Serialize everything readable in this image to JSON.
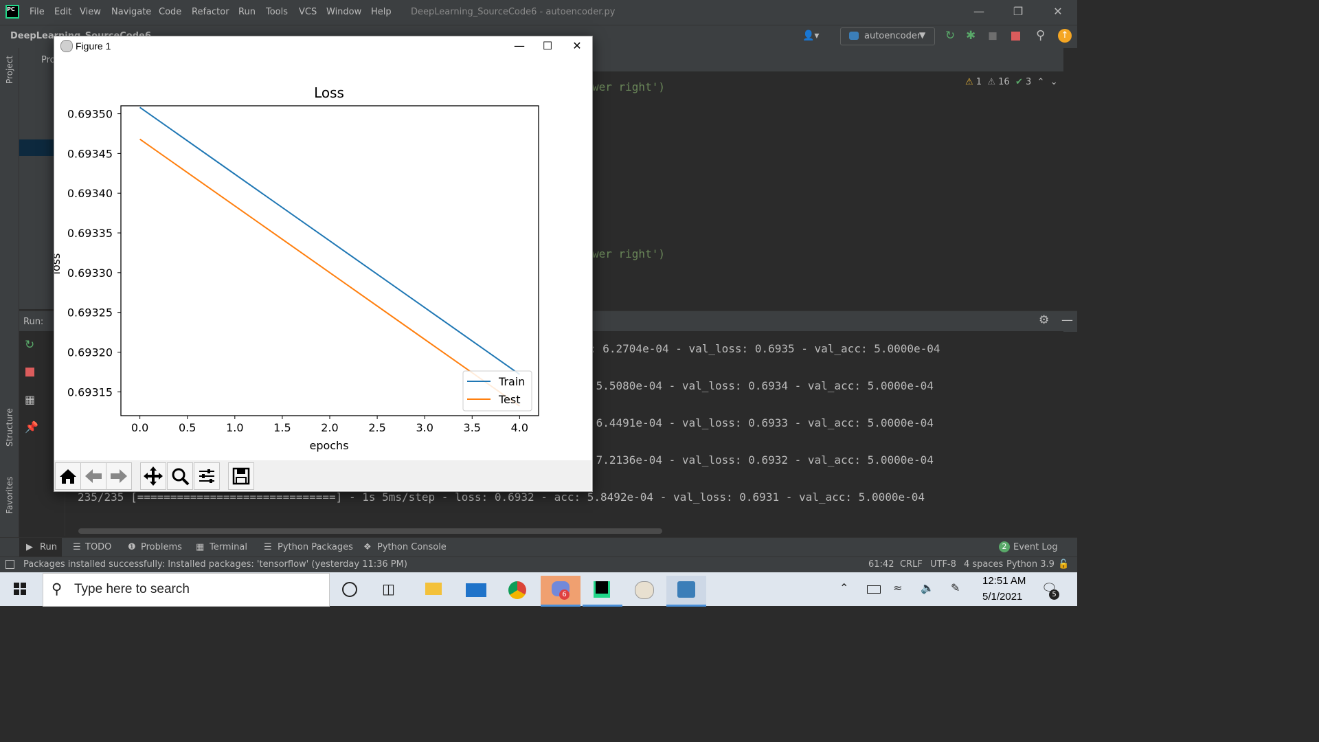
{
  "app": {
    "title": "DeepLearning_SourceCode6 - autoencoder.py",
    "menu": [
      "File",
      "Edit",
      "View",
      "Navigate",
      "Code",
      "Refactor",
      "Run",
      "Tools",
      "VCS",
      "Window",
      "Help"
    ]
  },
  "nav": {
    "breadcrumb": "DeepLearning_SourceCode6",
    "run_config": "autoencoder"
  },
  "sidebar": {
    "project_label": "Project",
    "structure_label": "Structure",
    "favorites_label": "Favorites",
    "project_tab": "Pro"
  },
  "editor": {
    "line1": "wer right')",
    "line2": "wer right')",
    "inspections": {
      "warnings": "1",
      "weak_warnings": "16",
      "typos": "3"
    }
  },
  "run": {
    "label": "Run:",
    "lines": [
      ": 6.2704e-04 - val_loss: 0.6935 - val_acc: 5.0000e-04",
      " 5.5080e-04 - val_loss: 0.6934 - val_acc: 5.0000e-04",
      " 6.4491e-04 - val_loss: 0.6933 - val_acc: 5.0000e-04",
      " 7.2136e-04 - val_loss: 0.6932 - val_acc: 5.0000e-04",
      "235/235 [==============================] - 1s 5ms/step - loss: 0.6932 - acc: 5.8492e-04 - val_loss: 0.6931 - val_acc: 5.0000e-04"
    ]
  },
  "tool_windows": [
    "Run",
    "TODO",
    "Problems",
    "Terminal",
    "Python Packages",
    "Python Console"
  ],
  "event_log": {
    "count": "2",
    "label": "Event Log"
  },
  "status": {
    "message": "Packages installed successfully: Installed packages: 'tensorflow' (yesterday 11:36 PM)",
    "position": "61:42",
    "line_sep": "CRLF",
    "encoding": "UTF-8",
    "indent": "4 spaces",
    "interpreter": "Python 3.9"
  },
  "taskbar": {
    "search_placeholder": "Type here to search",
    "time": "12:51 AM",
    "date": "5/1/2021",
    "discord_badge": "6",
    "notifications": "5"
  },
  "figure": {
    "window_title": "Figure 1",
    "colors": {
      "train": "#1f77b4",
      "test": "#ff7f0e"
    }
  },
  "chart_data": {
    "type": "line",
    "title": "Loss",
    "xlabel": "epochs",
    "ylabel": "loss",
    "x": [
      0,
      1,
      2,
      3,
      4
    ],
    "xticks": [
      "0.0",
      "0.5",
      "1.0",
      "1.5",
      "2.0",
      "2.5",
      "3.0",
      "3.5",
      "4.0"
    ],
    "yticks": [
      "0.69315",
      "0.69320",
      "0.69325",
      "0.69330",
      "0.69335",
      "0.69340",
      "0.69345",
      "0.69350"
    ],
    "xlim": [
      -0.2,
      4.2
    ],
    "ylim": [
      0.69312,
      0.69351
    ],
    "series": [
      {
        "name": "Train",
        "values": [
          0.693508,
          0.693424,
          0.69334,
          0.693256,
          0.693172
        ]
      },
      {
        "name": "Test",
        "values": [
          0.693468,
          0.693384,
          0.6933,
          0.693216,
          0.693132
        ]
      }
    ],
    "legend": "lower right",
    "grid": false
  }
}
